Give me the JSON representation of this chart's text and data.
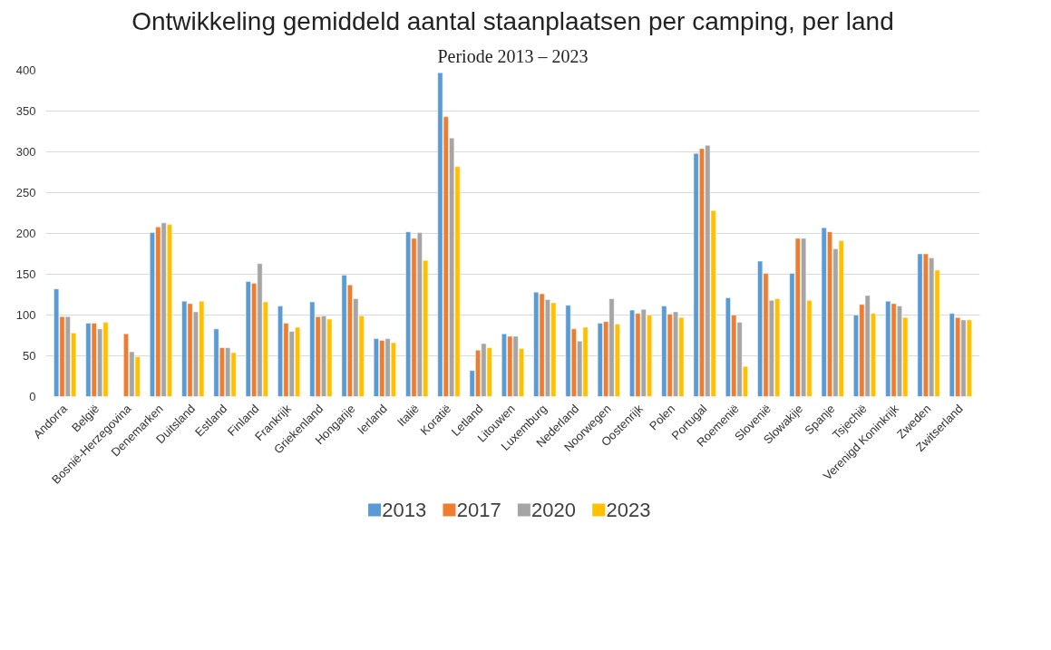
{
  "chart_data": {
    "type": "bar",
    "title": "Ontwikkeling gemiddeld aantal staanplaatsen per camping, per land",
    "subtitle": "Periode 2013 – 2023",
    "categories": [
      "Andorra",
      "België",
      "Bosnië-Herzegovina",
      "Denemarken",
      "Duitsland",
      "Estland",
      "Finland",
      "Frankrijk",
      "Griekenland",
      "Hongarije",
      "Ierland",
      "Italië",
      "Koratië",
      "Letland",
      "Litouwen",
      "Luxemburg",
      "Nederland",
      "Noorwegen",
      "Oostenrijk",
      "Polen",
      "Portugal",
      "Roemenië",
      "Slovenië",
      "Slowakije",
      "Spanje",
      "Tsjechië",
      "Verenigd Koninkrijk",
      "Zweden",
      "Zwitserland"
    ],
    "series": [
      {
        "name": "2013",
        "color": "#5b9bd5",
        "values": [
          132,
          90,
          null,
          201,
          117,
          83,
          141,
          111,
          116,
          149,
          71,
          202,
          397,
          32,
          77,
          128,
          112,
          90,
          106,
          111,
          298,
          121,
          166,
          151,
          207,
          100,
          117,
          175,
          102
        ]
      },
      {
        "name": "2017",
        "color": "#ed7d31",
        "values": [
          98,
          90,
          77,
          208,
          114,
          60,
          139,
          90,
          98,
          137,
          69,
          194,
          343,
          57,
          74,
          126,
          83,
          92,
          102,
          101,
          304,
          100,
          151,
          194,
          202,
          113,
          114,
          175,
          97
        ]
      },
      {
        "name": "2020",
        "color": "#a5a5a5",
        "values": [
          98,
          83,
          55,
          213,
          104,
          60,
          163,
          80,
          99,
          120,
          71,
          201,
          317,
          65,
          74,
          119,
          68,
          120,
          107,
          104,
          308,
          91,
          118,
          194,
          181,
          124,
          111,
          170,
          94
        ]
      },
      {
        "name": "2023",
        "color": "#ffc000",
        "values": [
          78,
          91,
          49,
          211,
          117,
          54,
          116,
          85,
          95,
          99,
          66,
          167,
          282,
          60,
          59,
          115,
          85,
          89,
          100,
          97,
          228,
          37,
          120,
          118,
          191,
          102,
          97,
          155,
          94
        ]
      }
    ],
    "ylim": [
      0,
      400
    ],
    "yticks": [
      0,
      50,
      100,
      150,
      200,
      250,
      300,
      350,
      400
    ],
    "grid": "y",
    "legend": "bottom"
  }
}
